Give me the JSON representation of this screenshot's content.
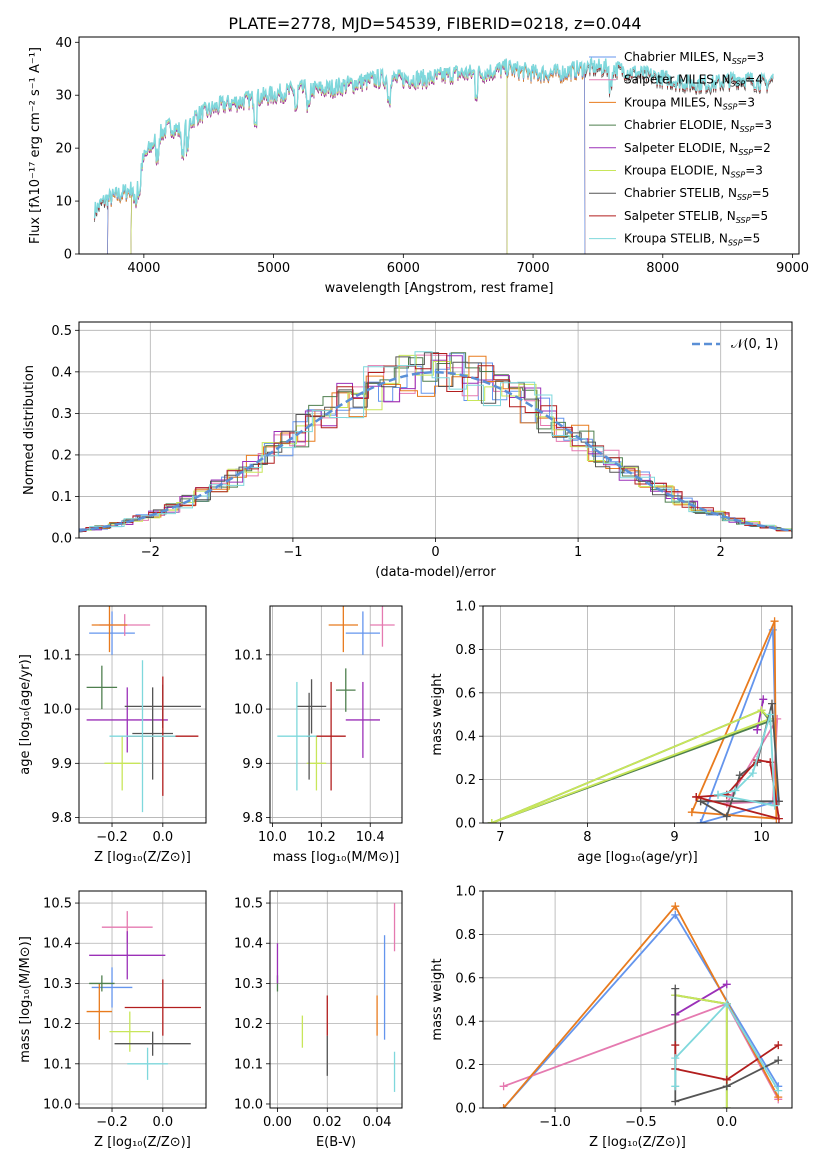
{
  "title": "PLATE=2778, MJD=54539, FIBERID=0218, z=0.044",
  "colors": {
    "Chabrier MILES": "#6495ed",
    "Salpeter MILES": "#e57ab0",
    "Kroupa MILES": "#e87b1e",
    "Chabrier ELODIE": "#4e7f4e",
    "Salpeter ELODIE": "#9b30b8",
    "Kroupa ELODIE": "#c8e65a",
    "Chabrier STELIB": "#555555",
    "Salpeter STELIB": "#b21e1e",
    "Kroupa STELIB": "#7fd8dc"
  },
  "chart_data": [
    {
      "id": "spectrum",
      "type": "line",
      "xlabel": "wavelength [Angstrom, rest frame]",
      "ylabel": "Flux [fλ10⁻¹⁷ erg cm⁻² s⁻¹ A⁻¹]",
      "xlim": [
        3500,
        9050
      ],
      "ylim": [
        0,
        41
      ],
      "xticks": [
        4000,
        5000,
        6000,
        7000,
        8000,
        9000
      ],
      "yticks": [
        0,
        10,
        20,
        30,
        40
      ],
      "legend_position": "right",
      "legend": [
        {
          "label": "Chabrier MILES, N",
          "sub": "SSP",
          "eq": "=3"
        },
        {
          "label": "Salpeter MILES, N",
          "sub": "SSP",
          "eq": "=4"
        },
        {
          "label": "Kroupa MILES, N",
          "sub": "SSP",
          "eq": "=3"
        },
        {
          "label": "Chabrier ELODIE, N",
          "sub": "SSP",
          "eq": "=3"
        },
        {
          "label": "Salpeter ELODIE, N",
          "sub": "SSP",
          "eq": "=2"
        },
        {
          "label": "Kroupa ELODIE, N",
          "sub": "SSP",
          "eq": "=3"
        },
        {
          "label": "Chabrier STELIB, N",
          "sub": "SSP",
          "eq": "=5"
        },
        {
          "label": "Salpeter STELIB, N",
          "sub": "SSP",
          "eq": "=5"
        },
        {
          "label": "Kroupa STELIB, N",
          "sub": "SSP",
          "eq": "=5"
        }
      ],
      "continuum": [
        [
          3620,
          8
        ],
        [
          3700,
          10
        ],
        [
          3800,
          11
        ],
        [
          3900,
          12
        ],
        [
          3950,
          14
        ],
        [
          4000,
          18
        ],
        [
          4100,
          22
        ],
        [
          4200,
          24
        ],
        [
          4300,
          23
        ],
        [
          4400,
          26
        ],
        [
          4500,
          27
        ],
        [
          4600,
          28
        ],
        [
          4800,
          29
        ],
        [
          5000,
          30
        ],
        [
          5200,
          31
        ],
        [
          5400,
          31
        ],
        [
          5600,
          32
        ],
        [
          5800,
          33
        ],
        [
          6000,
          33
        ],
        [
          6200,
          33
        ],
        [
          6400,
          34
        ],
        [
          6600,
          34
        ],
        [
          6800,
          35
        ],
        [
          7000,
          34
        ],
        [
          7200,
          34
        ],
        [
          7400,
          35
        ],
        [
          7600,
          35
        ],
        [
          7800,
          34
        ],
        [
          8000,
          33
        ],
        [
          8200,
          32
        ],
        [
          8400,
          32
        ],
        [
          8600,
          33
        ],
        [
          8800,
          32
        ],
        [
          8850,
          33
        ]
      ],
      "model_edges": {
        "Chabrier MILES": [
          3720,
          7400
        ],
        "Salpeter MILES": [
          3720,
          7400
        ],
        "Kroupa MILES": [
          3720,
          7400
        ],
        "Chabrier ELODIE": [
          3900,
          6800
        ],
        "Salpeter ELODIE": [
          3900,
          6800
        ],
        "Kroupa ELODIE": [
          3900,
          6800
        ],
        "Chabrier STELIB": [
          3620,
          8850
        ],
        "Salpeter STELIB": [
          3620,
          8850
        ],
        "Kroupa STELIB": [
          3620,
          8850
        ]
      }
    },
    {
      "id": "residuals",
      "type": "line",
      "xlabel": "(data-model)/error",
      "ylabel": "Normed distribution",
      "xlim": [
        -2.5,
        2.5
      ],
      "ylim": [
        0,
        0.52
      ],
      "xticks": [
        -2,
        -1,
        0,
        1,
        2
      ],
      "yticks": [
        0.0,
        0.1,
        0.2,
        0.3,
        0.4,
        0.5
      ],
      "grid": true,
      "legend_position": "top-right",
      "legend_label": "𝒩(0, 1)",
      "gaussian": {
        "mean": 0,
        "sigma": 1
      }
    },
    {
      "id": "age_vs_Z",
      "type": "scatter",
      "xlabel": "Z [log₁₀(Z/Z⊙)]",
      "ylabel": "age  [log₁₀(age/yr)]",
      "xlim": [
        -0.33,
        0.17
      ],
      "ylim": [
        9.79,
        10.19
      ],
      "xticks": [
        -0.2,
        0.0
      ],
      "yticks": [
        9.8,
        9.9,
        10.0,
        10.1
      ],
      "grid": true,
      "points": [
        {
          "model": "Chabrier MILES",
          "x": -0.2,
          "xerr": 0.09,
          "y": 10.14,
          "yerr": 0.04
        },
        {
          "model": "Salpeter MILES",
          "x": -0.15,
          "xerr": 0.1,
          "y": 10.155,
          "yerr": 0.02
        },
        {
          "model": "Kroupa MILES",
          "x": -0.21,
          "xerr": 0.07,
          "y": 10.155,
          "yerr": 0.05
        },
        {
          "model": "Chabrier ELODIE",
          "x": -0.24,
          "xerr": 0.06,
          "y": 10.04,
          "yerr": 0.04
        },
        {
          "model": "Salpeter ELODIE",
          "x": -0.14,
          "xerr": 0.16,
          "y": 9.98,
          "yerr": 0.06
        },
        {
          "model": "Kroupa ELODIE",
          "x": -0.16,
          "xerr": 0.07,
          "y": 9.9,
          "yerr": 0.05
        },
        {
          "model": "Chabrier STELIB",
          "x": -0.04,
          "xerr": 0.08,
          "y": 9.955,
          "yerr": 0.085
        },
        {
          "model": "Chabrier STELIB",
          "x": 0.0,
          "xerr": 0.15,
          "y": 10.005,
          "yerr": 0.04
        },
        {
          "model": "Salpeter STELIB",
          "x": 0.0,
          "xerr": 0.14,
          "y": 9.95,
          "yerr": 0.11
        },
        {
          "model": "Kroupa STELIB",
          "x": -0.08,
          "xerr": 0.13,
          "y": 9.95,
          "yerr": 0.14
        }
      ]
    },
    {
      "id": "age_vs_mass",
      "type": "scatter",
      "xlabel": "mass [log₁₀(M/M⊙)]",
      "ylabel": "",
      "xlim": [
        9.99,
        10.53
      ],
      "ylim": [
        9.79,
        10.19
      ],
      "xticks": [
        10.0,
        10.2,
        10.4
      ],
      "yticks": [
        9.8,
        9.9,
        10.0,
        10.1
      ],
      "grid": true,
      "points": [
        {
          "model": "Chabrier MILES",
          "x": 10.37,
          "xerr": 0.07,
          "y": 10.14,
          "yerr": 0.04
        },
        {
          "model": "Salpeter MILES",
          "x": 10.45,
          "xerr": 0.05,
          "y": 10.155,
          "yerr": 0.04
        },
        {
          "model": "Kroupa MILES",
          "x": 10.29,
          "xerr": 0.06,
          "y": 10.155,
          "yerr": 0.05
        },
        {
          "model": "Chabrier ELODIE",
          "x": 10.3,
          "xerr": 0.04,
          "y": 10.035,
          "yerr": 0.04
        },
        {
          "model": "Salpeter ELODIE",
          "x": 10.37,
          "xerr": 0.07,
          "y": 9.98,
          "yerr": 0.07
        },
        {
          "model": "Kroupa ELODIE",
          "x": 10.18,
          "xerr": 0.04,
          "y": 9.9,
          "yerr": 0.05
        },
        {
          "model": "Chabrier STELIB",
          "x": 10.16,
          "xerr": 0.06,
          "y": 10.005,
          "yerr": 0.05
        },
        {
          "model": "Chabrier STELIB",
          "x": 10.15,
          "xerr": 0.01,
          "y": 9.95,
          "yerr": 0.08
        },
        {
          "model": "Salpeter STELIB",
          "x": 10.24,
          "xerr": 0.06,
          "y": 9.95,
          "yerr": 0.1
        },
        {
          "model": "Kroupa STELIB",
          "x": 10.1,
          "xerr": 0.08,
          "y": 9.95,
          "yerr": 0.1
        }
      ]
    },
    {
      "id": "weight_vs_age",
      "type": "line",
      "xlabel": "age  [log₁₀(age/yr)]",
      "ylabel": "mass weight",
      "xlim": [
        6.8,
        10.35
      ],
      "ylim": [
        0,
        1.0
      ],
      "xticks": [
        7,
        8,
        9,
        10
      ],
      "yticks": [
        0.0,
        0.2,
        0.4,
        0.6,
        0.8,
        1.0
      ],
      "grid": true,
      "series": [
        {
          "model": "Chabrier MILES",
          "x": [
            9.3,
            10.13,
            10.18,
            9.3
          ],
          "y": [
            0.0,
            0.89,
            0.1,
            0.0
          ]
        },
        {
          "model": "Salpeter MILES",
          "x": [
            9.6,
            10.13,
            10.18,
            9.6
          ],
          "y": [
            0.09,
            0.1,
            0.48,
            0.09
          ]
        },
        {
          "model": "Kroupa MILES",
          "x": [
            9.2,
            10.15,
            10.17,
            9.2
          ],
          "y": [
            0.05,
            0.93,
            0.02,
            0.05
          ]
        },
        {
          "model": "Chabrier ELODIE",
          "x": [
            6.9,
            10.0,
            10.1,
            6.9
          ],
          "y": [
            0.0,
            0.52,
            0.47,
            0.0
          ]
        },
        {
          "model": "Salpeter ELODIE",
          "x": [
            9.95,
            10.02,
            9.95
          ],
          "y": [
            0.43,
            0.57,
            0.43
          ]
        },
        {
          "model": "Kroupa ELODIE",
          "x": [
            6.9,
            10.0,
            10.1,
            6.9
          ],
          "y": [
            0.0,
            0.52,
            0.48,
            0.0
          ]
        },
        {
          "model": "Chabrier STELIB",
          "x": [
            9.3,
            9.6,
            9.75,
            9.95,
            10.12,
            10.2,
            9.3
          ],
          "y": [
            0.1,
            0.03,
            0.22,
            0.28,
            0.55,
            0.1,
            0.1
          ]
        },
        {
          "model": "Salpeter STELIB",
          "x": [
            9.25,
            9.6,
            9.95,
            10.1,
            10.2,
            9.25
          ],
          "y": [
            0.12,
            0.13,
            0.29,
            0.28,
            0.02,
            0.12
          ]
        },
        {
          "model": "Kroupa STELIB",
          "x": [
            9.5,
            9.7,
            9.9,
            10.1,
            10.15,
            9.5
          ],
          "y": [
            0.13,
            0.15,
            0.23,
            0.5,
            0.08,
            0.13
          ]
        }
      ]
    },
    {
      "id": "mass_vs_Z",
      "type": "scatter",
      "xlabel": "Z [log₁₀(Z/Z⊙)]",
      "ylabel": "mass [log₁₀(M/M⊙)]",
      "xlim": [
        -0.33,
        0.17
      ],
      "ylim": [
        9.99,
        10.53
      ],
      "xticks": [
        -0.2,
        0.0
      ],
      "yticks": [
        10.0,
        10.1,
        10.2,
        10.3,
        10.4,
        10.5
      ],
      "grid": true,
      "points": [
        {
          "model": "Chabrier MILES",
          "x": -0.2,
          "xerr": 0.08,
          "y": 10.29,
          "yerr": 0.05
        },
        {
          "model": "Salpeter MILES",
          "x": -0.14,
          "xerr": 0.1,
          "y": 10.44,
          "yerr": 0.04
        },
        {
          "model": "Kroupa MILES",
          "x": -0.25,
          "xerr": 0.05,
          "y": 10.23,
          "yerr": 0.07
        },
        {
          "model": "Chabrier ELODIE",
          "x": -0.24,
          "xerr": 0.05,
          "y": 10.3,
          "yerr": 0.02
        },
        {
          "model": "Salpeter ELODIE",
          "x": -0.14,
          "xerr": 0.15,
          "y": 10.37,
          "yerr": 0.06
        },
        {
          "model": "Kroupa ELODIE",
          "x": -0.13,
          "xerr": 0.08,
          "y": 10.18,
          "yerr": 0.05
        },
        {
          "model": "Chabrier STELIB",
          "x": -0.04,
          "xerr": 0.15,
          "y": 10.15,
          "yerr": 0.03
        },
        {
          "model": "Salpeter STELIB",
          "x": 0.0,
          "xerr": 0.15,
          "y": 10.24,
          "yerr": 0.07
        },
        {
          "model": "Kroupa STELIB",
          "x": -0.06,
          "xerr": 0.08,
          "y": 10.1,
          "yerr": 0.04
        }
      ]
    },
    {
      "id": "mass_vs_ebv",
      "type": "scatter",
      "xlabel": "E(B-V)",
      "ylabel": "",
      "xlim": [
        -0.003,
        0.05
      ],
      "ylim": [
        9.99,
        10.53
      ],
      "xticks": [
        0.0,
        0.02,
        0.04
      ],
      "yticks": [
        10.0,
        10.1,
        10.2,
        10.3,
        10.4,
        10.5
      ],
      "grid": true,
      "points": [
        {
          "model": "Chabrier MILES",
          "x": 0.043,
          "y": 10.29,
          "yerr": 0.13
        },
        {
          "model": "Salpeter MILES",
          "x": 0.047,
          "y": 10.44,
          "yerr": 0.06
        },
        {
          "model": "Kroupa MILES",
          "x": 0.04,
          "y": 10.22,
          "yerr": 0.05
        },
        {
          "model": "Chabrier ELODIE",
          "x": 0.0,
          "y": 10.3,
          "yerr": 0.02
        },
        {
          "model": "Salpeter ELODIE",
          "x": 0.0,
          "y": 10.35,
          "yerr": 0.05
        },
        {
          "model": "Kroupa ELODIE",
          "x": 0.01,
          "y": 10.18,
          "yerr": 0.04
        },
        {
          "model": "Chabrier STELIB",
          "x": 0.02,
          "y": 10.12,
          "yerr": 0.05
        },
        {
          "model": "Salpeter STELIB",
          "x": 0.02,
          "y": 10.22,
          "yerr": 0.05
        },
        {
          "model": "Kroupa STELIB",
          "x": 0.047,
          "y": 10.08,
          "yerr": 0.05
        }
      ]
    },
    {
      "id": "weight_vs_Z",
      "type": "line",
      "xlabel": "Z [log₁₀(Z/Z⊙)]",
      "ylabel": "mass weight",
      "xlim": [
        -1.42,
        0.38
      ],
      "ylim": [
        0,
        1.0
      ],
      "xticks": [
        -1.0,
        -0.5,
        0.0
      ],
      "yticks": [
        0.0,
        0.2,
        0.4,
        0.6,
        0.8,
        1.0
      ],
      "grid": true,
      "series": [
        {
          "model": "Chabrier MILES",
          "x": [
            -1.3,
            -0.3,
            0.3
          ],
          "y": [
            0.0,
            0.89,
            0.1
          ]
        },
        {
          "model": "Salpeter MILES",
          "x": [
            -1.3,
            0.0,
            0.3
          ],
          "y": [
            0.1,
            0.48,
            0.04
          ]
        },
        {
          "model": "Kroupa MILES",
          "x": [
            -1.3,
            -0.3,
            0.3
          ],
          "y": [
            0.0,
            0.93,
            0.05
          ]
        },
        {
          "model": "Chabrier ELODIE",
          "x": [
            -0.3,
            0.0,
            0.0
          ],
          "y": [
            0.52,
            0.48,
            0.0
          ]
        },
        {
          "model": "Salpeter ELODIE",
          "x": [
            -0.3,
            0.0,
            -0.3
          ],
          "y": [
            0.43,
            0.57,
            0.43
          ]
        },
        {
          "model": "Kroupa ELODIE",
          "x": [
            -0.3,
            0.0,
            0.0
          ],
          "y": [
            0.52,
            0.48,
            0.0
          ]
        },
        {
          "model": "Chabrier STELIB",
          "x": [
            -0.3,
            -0.3,
            0.0,
            0.3
          ],
          "y": [
            0.55,
            0.03,
            0.1,
            0.22
          ]
        },
        {
          "model": "Salpeter STELIB",
          "x": [
            -0.3,
            -0.3,
            0.0,
            0.3
          ],
          "y": [
            0.29,
            0.18,
            0.13,
            0.29
          ]
        },
        {
          "model": "Kroupa STELIB",
          "x": [
            -0.3,
            -0.3,
            0.0,
            0.3
          ],
          "y": [
            0.1,
            0.23,
            0.48,
            0.08
          ]
        }
      ]
    }
  ]
}
